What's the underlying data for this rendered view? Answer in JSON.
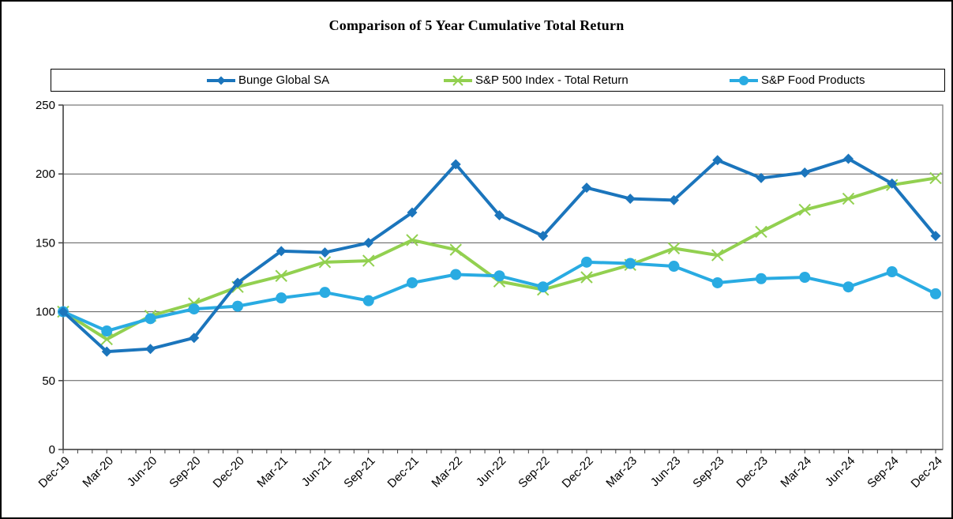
{
  "title": "Comparison of 5 Year Cumulative Total Return",
  "chart_data": {
    "type": "line",
    "title": "Comparison of 5 Year Cumulative Total Return",
    "x": [
      "Dec-19",
      "Mar-20",
      "Jun-20",
      "Sep-20",
      "Dec-20",
      "Mar-21",
      "Jun-21",
      "Sep-21",
      "Dec-21",
      "Mar-22",
      "Jun-22",
      "Sep-22",
      "Dec-22",
      "Mar-23",
      "Jun-23",
      "Sep-23",
      "Dec-23",
      "Mar-24",
      "Jun-24",
      "Sep-24",
      "Dec-24"
    ],
    "series": [
      {
        "name": "Bunge Global SA",
        "color": "#1B75BC",
        "marker": "diamond",
        "values": [
          100,
          71,
          73,
          81,
          121,
          144,
          143,
          150,
          172,
          207,
          170,
          155,
          190,
          182,
          181,
          210,
          197,
          201,
          211,
          193,
          155
        ]
      },
      {
        "name": "S&P 500 Index - Total Return",
        "color": "#92D050",
        "marker": "x",
        "values": [
          100,
          80,
          97,
          106,
          118,
          126,
          136,
          137,
          152,
          145,
          122,
          116,
          125,
          134,
          146,
          141,
          158,
          174,
          182,
          192,
          197
        ]
      },
      {
        "name": "S&P Food Products",
        "color": "#29ABE2",
        "marker": "circle",
        "values": [
          100,
          86,
          95,
          102,
          104,
          110,
          114,
          108,
          121,
          127,
          126,
          118,
          136,
          135,
          133,
          121,
          124,
          125,
          118,
          129,
          113
        ]
      }
    ],
    "ylim": [
      0,
      250
    ],
    "ytick_step": 50,
    "ytick_labels": [
      "0",
      "50",
      "100",
      "150",
      "200",
      "250"
    ],
    "grid": true,
    "legend_position": "top",
    "axis_color": "#404040",
    "grid_color": "#595959",
    "border_color": "#7F7F7F"
  }
}
